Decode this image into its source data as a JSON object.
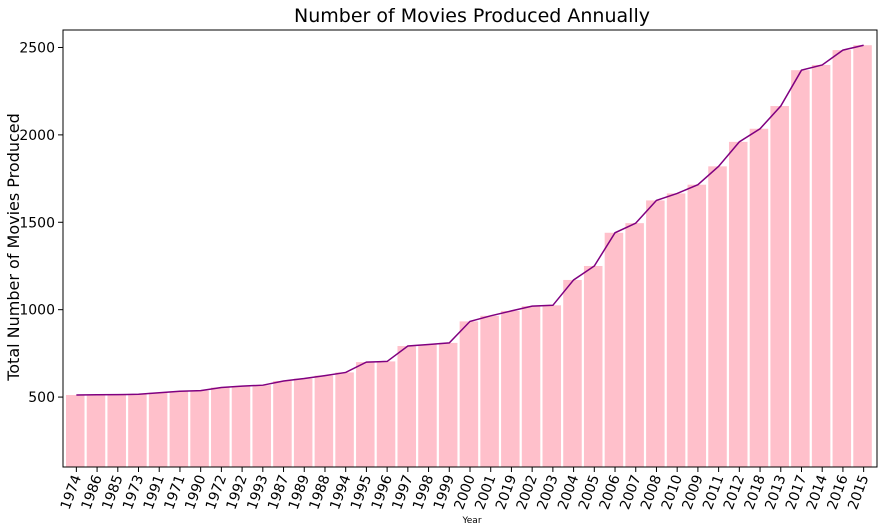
{
  "chart_data": {
    "type": "bar",
    "title": "Number of Movies Produced Annually",
    "xlabel": "Year",
    "ylabel": "Total Number of Movies Produced",
    "categories": [
      "1974",
      "1986",
      "1985",
      "1973",
      "1991",
      "1971",
      "1990",
      "1972",
      "1992",
      "1993",
      "1987",
      "1989",
      "1988",
      "1994",
      "1995",
      "1996",
      "1997",
      "1998",
      "1999",
      "2000",
      "2001",
      "2019",
      "2002",
      "2003",
      "2004",
      "2005",
      "2006",
      "2007",
      "2008",
      "2010",
      "2009",
      "2011",
      "2012",
      "2018",
      "2013",
      "2017",
      "2014",
      "2016",
      "2015"
    ],
    "values": [
      512,
      513,
      514,
      516,
      525,
      533,
      537,
      555,
      563,
      568,
      592,
      606,
      623,
      641,
      700,
      704,
      792,
      801,
      810,
      933,
      965,
      993,
      1020,
      1025,
      1170,
      1250,
      1440,
      1495,
      1625,
      1665,
      1715,
      1820,
      1960,
      2035,
      2165,
      2370,
      2400,
      2485,
      2513
    ],
    "ylim": [
      100,
      2600
    ],
    "yticks": [
      500,
      1000,
      1500,
      2000,
      2500
    ],
    "grid": false,
    "bar_color": "#ffc0cb",
    "line_color": "#800080",
    "series": [
      {
        "type": "bar",
        "color": "#ffc0cb"
      },
      {
        "type": "line",
        "color": "#800080"
      }
    ]
  }
}
